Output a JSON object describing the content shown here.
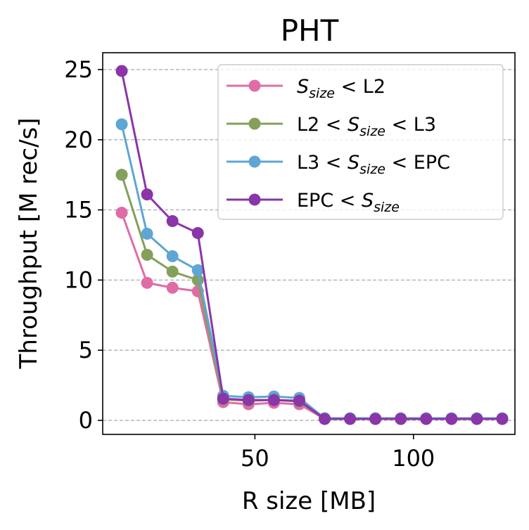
{
  "chart_data": {
    "type": "line",
    "title": "PHT",
    "xlabel": "R size [MB]",
    "ylabel": "Throughput [M rec/s]",
    "xlim": [
      2,
      132
    ],
    "ylim": [
      -1,
      26.2
    ],
    "xticks": [
      50,
      100
    ],
    "yticks": [
      0,
      5,
      10,
      15,
      20,
      25
    ],
    "grid": "y-dashed",
    "legend_position": "top-right",
    "x": [
      8,
      16,
      24,
      32,
      40,
      48,
      56,
      64,
      72,
      80,
      88,
      96,
      104,
      112,
      120,
      128
    ],
    "series": [
      {
        "name_parts": [
          "",
          "S",
          "size",
          " < L2"
        ],
        "color": "#e06ca6",
        "values": [
          14.8,
          9.8,
          9.45,
          9.2,
          1.3,
          1.15,
          1.25,
          1.15,
          0.1,
          0.1,
          0.1,
          0.1,
          0.1,
          0.1,
          0.1,
          0.1
        ]
      },
      {
        "name_parts": [
          "L2 < ",
          "S",
          "size",
          " < L3"
        ],
        "color": "#84a05a",
        "values": [
          17.5,
          11.8,
          10.6,
          10.0,
          1.5,
          1.4,
          1.45,
          1.35,
          0.12,
          0.12,
          0.12,
          0.12,
          0.12,
          0.12,
          0.12,
          0.12
        ]
      },
      {
        "name_parts": [
          "L3 < ",
          "S",
          "size",
          " < EPC"
        ],
        "color": "#5ea6d4",
        "values": [
          21.1,
          13.3,
          11.7,
          10.7,
          1.75,
          1.65,
          1.7,
          1.6,
          0.15,
          0.15,
          0.15,
          0.15,
          0.15,
          0.15,
          0.15,
          0.15
        ]
      },
      {
        "name_parts": [
          "EPC < ",
          "S",
          "size",
          ""
        ],
        "color": "#8a35a8",
        "values": [
          24.9,
          16.1,
          14.2,
          13.35,
          1.55,
          1.45,
          1.45,
          1.4,
          0.1,
          0.1,
          0.1,
          0.1,
          0.1,
          0.1,
          0.1,
          0.1
        ]
      }
    ]
  }
}
